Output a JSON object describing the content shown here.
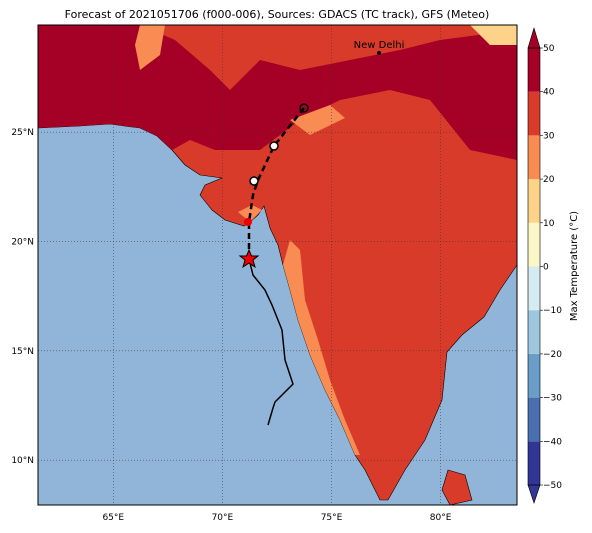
{
  "title": "Forecast of 2021051706 (f000-006), Sources: GDACS (TC track), GFS (Meteo)",
  "map": {
    "xlim": [
      61.55,
      83.5
    ],
    "ylim": [
      7.95,
      29.9
    ],
    "xticks": [
      {
        "value": 65,
        "label": "65°E"
      },
      {
        "value": 70,
        "label": "70°E"
      },
      {
        "value": 75,
        "label": "75°E"
      },
      {
        "value": 80,
        "label": "80°E"
      }
    ],
    "yticks": [
      {
        "value": 10,
        "label": "10°N"
      },
      {
        "value": 15,
        "label": "15°N"
      },
      {
        "value": 20,
        "label": "20°N"
      },
      {
        "value": 25,
        "label": "25°N"
      }
    ],
    "places": [
      {
        "label": "New Delhi"
      }
    ]
  },
  "colorbar": {
    "label": "Max Temperature (°C)",
    "lim": [
      -50,
      50
    ],
    "ticks": [
      {
        "value": -50,
        "label": "−50"
      },
      {
        "value": -40,
        "label": "−40"
      },
      {
        "value": -30,
        "label": "−30"
      },
      {
        "value": -20,
        "label": "−20"
      },
      {
        "value": -10,
        "label": "−10"
      },
      0,
      10,
      20,
      30,
      40,
      50
    ],
    "colors": [
      "#313695",
      "#4a6fb0",
      "#6a9ec9",
      "#9cc7df",
      "#d4ebf2",
      "#fbf7c6",
      "#fdd38a",
      "#f88c52",
      "#d93b2b",
      "#a50026"
    ]
  }
}
